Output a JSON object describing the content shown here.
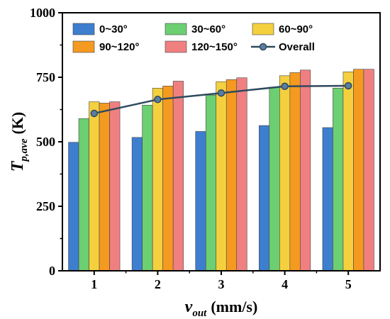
{
  "chart_data": {
    "type": "bar",
    "title": "",
    "xlabel": {
      "main": "v",
      "sub": "out",
      "unit": "(mm/s)"
    },
    "ylabel": {
      "main": "T",
      "sub": "p,ave",
      "unit": "(K)"
    },
    "categories": [
      "1",
      "2",
      "3",
      "4",
      "5"
    ],
    "ylim": [
      0,
      1000
    ],
    "yticks": [
      "0",
      "250",
      "500",
      "750",
      "1000"
    ],
    "grid": false,
    "legend": "top",
    "series": [
      {
        "name": "0~30°",
        "color": "#3d7ecf",
        "values": [
          498,
          517,
          540,
          563,
          555
        ]
      },
      {
        "name": "30~60°",
        "color": "#6ccf72",
        "values": [
          590,
          642,
          681,
          712,
          708
        ]
      },
      {
        "name": "60~90°",
        "color": "#f4d03f",
        "values": [
          655,
          708,
          733,
          756,
          771
        ]
      },
      {
        "name": "90~120°",
        "color": "#f59a20",
        "values": [
          650,
          716,
          741,
          768,
          781
        ]
      },
      {
        "name": "120~150°",
        "color": "#f08080",
        "values": [
          655,
          735,
          748,
          778,
          781
        ]
      }
    ],
    "overall": {
      "name": "Overall",
      "color": "#2f4a5e",
      "values": [
        610,
        664,
        689,
        715,
        717
      ]
    }
  }
}
